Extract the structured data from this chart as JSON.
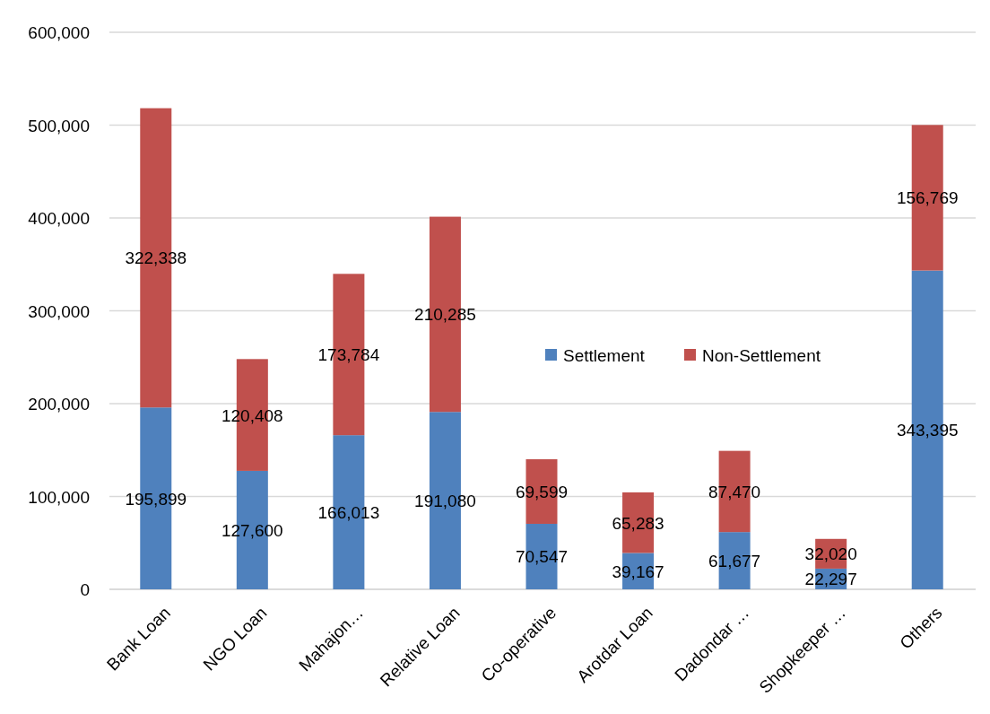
{
  "chart_data": {
    "type": "bar",
    "stacked": true,
    "categories": [
      "Bank Loan",
      "NGO Loan",
      "Mahajon…",
      "Relative Loan",
      "Co-operative",
      "Arotdar Loan",
      "Dadondar …",
      "Shopkeeper …",
      "Others"
    ],
    "series": [
      {
        "name": "Settlement",
        "color": "#4f81bd",
        "values": [
          195899,
          127600,
          166013,
          191080,
          70547,
          39167,
          61677,
          22297,
          343395
        ],
        "value_labels": [
          "195,899",
          "127,600",
          "166,013",
          "191,080",
          "70,547",
          "39,167",
          "61,677",
          "22,297",
          "343,395"
        ]
      },
      {
        "name": "Non-Settlement",
        "color": "#c0504d",
        "values": [
          322338,
          120408,
          173784,
          210285,
          69599,
          65283,
          87470,
          32020,
          156769
        ],
        "value_labels": [
          "322,338",
          "120,408",
          "173,784",
          "210,285",
          "69,599",
          "65,283",
          "87,470",
          "32,020",
          "156,769"
        ]
      }
    ],
    "ylim": [
      0,
      600000
    ],
    "yticks": [
      {
        "value": 0,
        "label": "0"
      },
      {
        "value": 100000,
        "label": "100,000"
      },
      {
        "value": 200000,
        "label": "200,000"
      },
      {
        "value": 300000,
        "label": "300,000"
      },
      {
        "value": 400000,
        "label": "400,000"
      },
      {
        "value": 500000,
        "label": "500,000"
      },
      {
        "value": 600000,
        "label": "600,000"
      }
    ],
    "grid": "y",
    "legend": "right"
  }
}
